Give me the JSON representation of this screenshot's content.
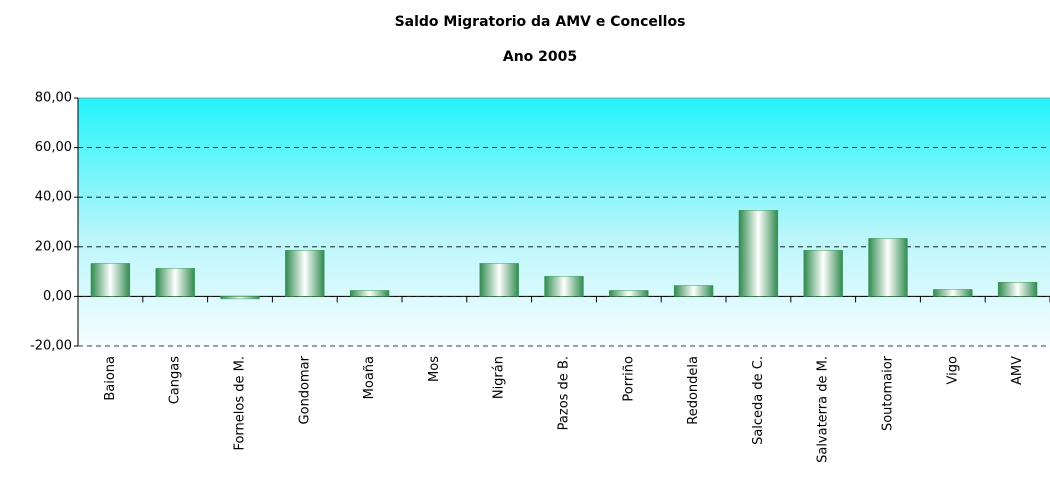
{
  "chart_data": {
    "type": "bar",
    "title": "Saldo Migratorio da AMV e Concellos",
    "subtitle": "Ano 2005",
    "categories": [
      "Baiona",
      "Cangas",
      "Fornelos de M.",
      "Gondomar",
      "Moaña",
      "Mos",
      "Nigrán",
      "Pazos de B.",
      "Porriño",
      "Redondela",
      "Salceda de C.",
      "Salvaterra de M.",
      "Soutomaior",
      "Vigo",
      "AMV"
    ],
    "values": [
      13.3,
      11.3,
      -1.0,
      18.6,
      2.4,
      0,
      13.3,
      8.1,
      2.4,
      4.4,
      34.7,
      18.6,
      23.4,
      2.8,
      5.7
    ],
    "color": "#3a9a5a",
    "ylim": [
      -20,
      80
    ],
    "yticks": [
      {
        "value": -20,
        "label": "-20,00"
      },
      {
        "value": 0,
        "label": "0,00"
      },
      {
        "value": 20,
        "label": "20,00"
      },
      {
        "value": 40,
        "label": "40,00"
      },
      {
        "value": 60,
        "label": "60,00"
      },
      {
        "value": 80,
        "label": "80,00"
      }
    ],
    "grid": true
  }
}
